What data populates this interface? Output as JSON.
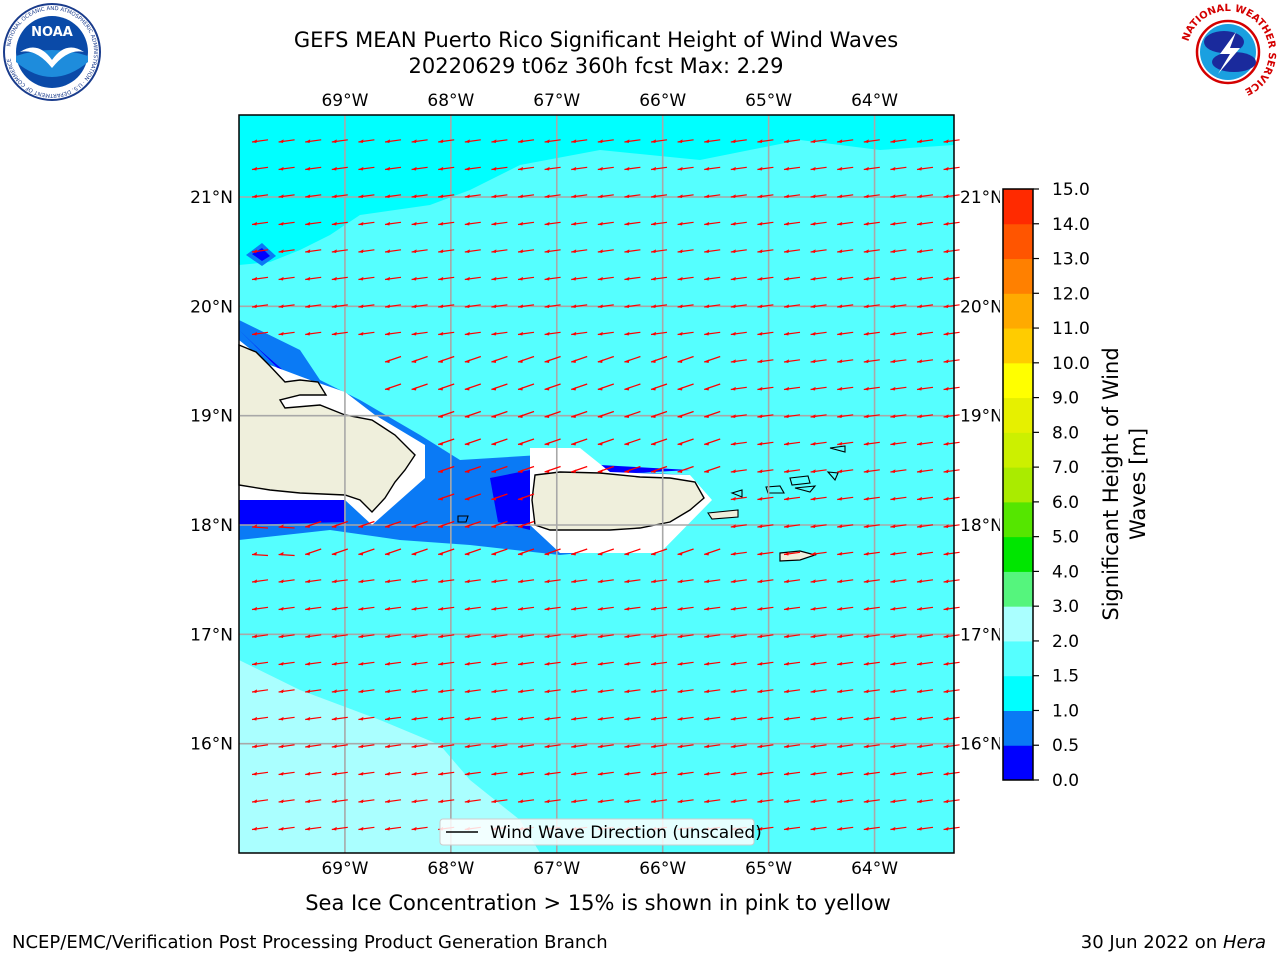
{
  "header": {
    "title_line1": "GEFS MEAN Puerto Rico Significant Height of Wind Waves",
    "title_line2": "20220629 t06z 360h fcst   Max: 2.29"
  },
  "logos": {
    "left": "noaa-logo",
    "right": "nws-logo",
    "noaa_text": "NOAA",
    "noaa_ring": "NATIONAL OCEANIC AND ATMOSPHERIC ADMINISTRATION · U.S. DEPARTMENT OF COMMERCE",
    "nws_ring": "NATIONAL WEATHER SERVICE"
  },
  "map": {
    "lon_labels": [
      "69°W",
      "68°W",
      "67°W",
      "66°W",
      "65°W",
      "64°W"
    ],
    "lat_labels": [
      "21°N",
      "20°N",
      "19°N",
      "18°N",
      "17°N",
      "16°N"
    ],
    "lon_values": [
      -69,
      -68,
      -67,
      -66,
      -65,
      -64
    ],
    "lat_values": [
      21,
      20,
      19,
      18,
      17,
      16
    ],
    "lon_range": [
      -70.0,
      -63.25
    ],
    "lat_range": [
      15.0,
      21.75
    ],
    "legend_label": "Wind Wave Direction (unscaled)",
    "arrow_color": "#ff0000",
    "land_color": "#efefdc",
    "grid": true
  },
  "colorbar": {
    "label": "Significant Height of Wind Waves [m]",
    "label_line1": "Significant Height of Wind",
    "label_line2": "Waves [m]",
    "ticks": [
      "0.0",
      "0.5",
      "1.0",
      "1.5",
      "2.0",
      "3.0",
      "4.0",
      "5.0",
      "6.0",
      "7.0",
      "8.0",
      "9.0",
      "10.0",
      "11.0",
      "12.0",
      "13.0",
      "14.0",
      "15.0"
    ],
    "colors": [
      "#0000ff",
      "#0a7af5",
      "#00ffff",
      "#55ffff",
      "#aaffff",
      "#55f57d",
      "#00e600",
      "#55e600",
      "#aaeb00",
      "#ccf000",
      "#e6f000",
      "#ffff00",
      "#ffcc00",
      "#ffaa00",
      "#ff8000",
      "#ff5500",
      "#ff2a00"
    ]
  },
  "footer": {
    "note": "Sea Ice Concentration > 15% is shown in pink to yellow",
    "left": "NCEP/EMC/Verification Post Processing Product Generation Branch",
    "right_date": "30 Jun 2022 on ",
    "right_machine": "Hera"
  }
}
